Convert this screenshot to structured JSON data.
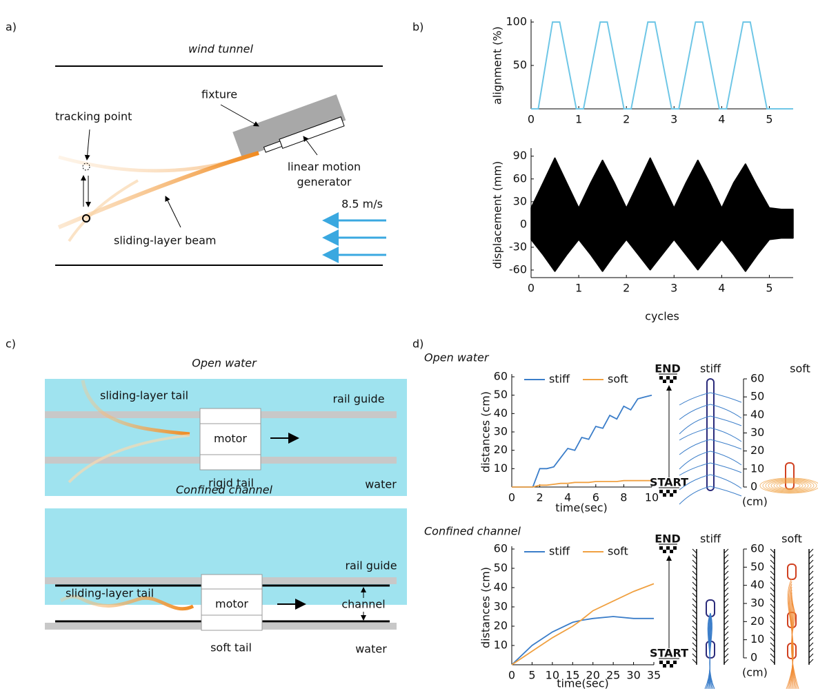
{
  "panels": {
    "a": {
      "label": "a)",
      "title": "wind tunnel",
      "fixture": "fixture",
      "tracking_point": "tracking point",
      "generator": [
        "linear motion",
        "generator"
      ],
      "speed": "8.5 m/s",
      "beam": "sliding-layer beam"
    },
    "b": {
      "label": "b)"
    },
    "c": {
      "label": "c)",
      "open": {
        "title": "Open water",
        "tail": "sliding-layer tail",
        "rail": "rail guide",
        "motor": "motor",
        "rigid": "rigid tail",
        "water": "water"
      },
      "confined": {
        "title": "Confined channel",
        "rail": "rail guide",
        "tail": "sliding-layer tail",
        "motor": "motor",
        "channel": "channel",
        "soft": "soft tail",
        "water": "water"
      }
    },
    "d": {
      "label": "d)",
      "open": {
        "title": "Open water",
        "end": "END",
        "start": "START",
        "stiff": "stiff",
        "soft": "soft",
        "scale_ticks": [
          0,
          10,
          20,
          30,
          40,
          50,
          60
        ],
        "unit": "(cm)"
      },
      "confined": {
        "title": "Confined channel",
        "end": "END",
        "start": "START",
        "stiff": "stiff",
        "soft": "soft",
        "scale_ticks": [
          0,
          10,
          20,
          30,
          40,
          50,
          60
        ],
        "unit": "(cm)"
      }
    }
  },
  "chart_data": [
    {
      "type": "line",
      "ylabel": "alignment (%)",
      "color": "#6ec6e6",
      "x": [
        0,
        0.15,
        0.45,
        0.6,
        0.95,
        1.1,
        1.45,
        1.6,
        1.95,
        2.1,
        2.45,
        2.6,
        2.95,
        3.1,
        3.45,
        3.6,
        3.95,
        4.1,
        4.45,
        4.6,
        4.95,
        5.5
      ],
      "values": [
        0,
        0,
        100,
        100,
        0,
        0,
        100,
        100,
        0,
        0,
        100,
        100,
        0,
        0,
        100,
        100,
        0,
        0,
        100,
        100,
        0,
        0
      ],
      "xlim": [
        0,
        5.5
      ],
      "ylim": [
        0,
        100
      ],
      "xticks": [
        0,
        1,
        2,
        3,
        4,
        5
      ],
      "yticks": [
        50,
        100
      ]
    },
    {
      "type": "band",
      "ylabel": "displacement (mm)",
      "xlabel": "cycles",
      "color": "#000000",
      "x": [
        0,
        0.25,
        0.5,
        0.75,
        1,
        1.25,
        1.5,
        1.75,
        2,
        2.25,
        2.5,
        2.75,
        3,
        3.25,
        3.5,
        3.75,
        4,
        4.25,
        4.5,
        4.75,
        5,
        5.25,
        5.5
      ],
      "upper": [
        22,
        55,
        88,
        55,
        22,
        55,
        85,
        55,
        22,
        55,
        88,
        55,
        22,
        55,
        85,
        55,
        22,
        55,
        80,
        50,
        22,
        20,
        20
      ],
      "lower": [
        -20,
        -40,
        -62,
        -40,
        -20,
        -40,
        -62,
        -40,
        -20,
        -40,
        -60,
        -40,
        -20,
        -40,
        -60,
        -40,
        -20,
        -40,
        -62,
        -40,
        -20,
        -18,
        -18
      ],
      "xlim": [
        0,
        5.5
      ],
      "ylim": [
        -70,
        97
      ],
      "xticks": [
        0,
        1,
        2,
        3,
        4,
        5
      ],
      "yticks": [
        -60,
        -30,
        0,
        30,
        60,
        90
      ]
    },
    {
      "type": "line",
      "ylabel": "distances (cm)",
      "xlabel": "time(sec)",
      "legend": "top",
      "x": [
        0,
        1,
        1.5,
        2,
        2.5,
        3,
        3.5,
        4,
        4.5,
        5,
        5.5,
        6,
        6.5,
        7,
        7.5,
        8,
        8.5,
        9,
        9.5,
        10
      ],
      "series": [
        {
          "name": "stiff",
          "color": "#3a7dc9",
          "values": [
            0,
            0,
            0,
            10,
            10,
            11,
            16,
            21,
            20,
            27,
            26,
            33,
            32,
            39,
            37,
            44,
            42,
            48,
            49,
            50
          ]
        },
        {
          "name": "soft",
          "color": "#f0a040",
          "values": [
            0,
            0,
            0,
            1,
            1,
            1.5,
            2,
            2,
            2.5,
            2.5,
            2.5,
            3,
            3,
            3,
            3,
            3.5,
            3.5,
            3.5,
            3.5,
            3.5
          ]
        }
      ],
      "xlim": [
        0,
        10
      ],
      "ylim": [
        0,
        60
      ],
      "xticks": [
        0,
        2,
        4,
        6,
        8,
        10
      ],
      "yticks": [
        10,
        20,
        30,
        40,
        50,
        60
      ]
    },
    {
      "type": "line",
      "ylabel": "distances (cm)",
      "xlabel": "time(sec)",
      "legend": "top",
      "x": [
        0,
        5,
        10,
        15,
        17,
        20,
        25,
        30,
        35
      ],
      "series": [
        {
          "name": "stiff",
          "color": "#3a7dc9",
          "values": [
            0,
            10,
            17,
            22,
            23,
            24,
            25,
            24,
            24
          ]
        },
        {
          "name": "soft",
          "color": "#f0a040",
          "values": [
            0,
            7,
            14,
            20,
            23,
            28,
            33,
            38,
            42
          ]
        }
      ],
      "xlim": [
        0,
        35
      ],
      "ylim": [
        0,
        60
      ],
      "xticks": [
        0,
        5,
        10,
        15,
        20,
        25,
        30,
        35
      ],
      "yticks": [
        10,
        20,
        30,
        40,
        50,
        60
      ]
    }
  ]
}
